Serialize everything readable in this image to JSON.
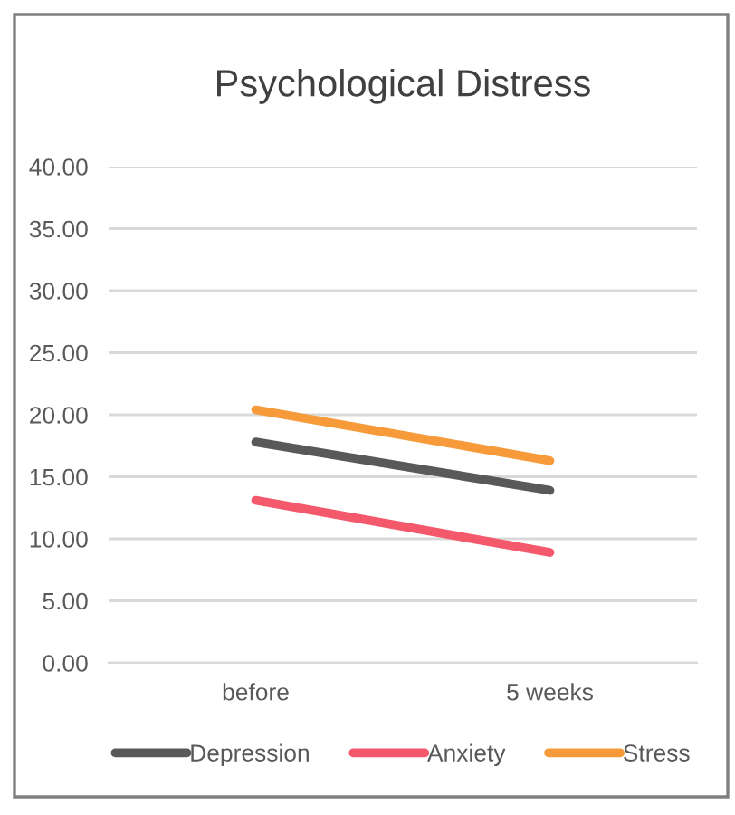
{
  "chart_data": {
    "type": "line",
    "title": "Psychological Distress",
    "categories": [
      "before",
      "5 weeks"
    ],
    "series": [
      {
        "name": "Depression",
        "color": "#595959",
        "values": [
          17.8,
          13.9
        ]
      },
      {
        "name": "Anxiety",
        "color": "#f4596b",
        "values": [
          13.1,
          8.9
        ]
      },
      {
        "name": "Stress",
        "color": "#f79a3a",
        "values": [
          20.4,
          16.3
        ]
      }
    ],
    "ylim": [
      0,
      40
    ],
    "yticks": [
      {
        "value": 0,
        "label": "0.00"
      },
      {
        "value": 5,
        "label": "5.00"
      },
      {
        "value": 10,
        "label": "10.00"
      },
      {
        "value": 15,
        "label": "15.00"
      },
      {
        "value": 20,
        "label": "20.00"
      },
      {
        "value": 25,
        "label": "25.00"
      },
      {
        "value": 30,
        "label": "30.00"
      },
      {
        "value": 35,
        "label": "35.00"
      },
      {
        "value": 40,
        "label": "40.00"
      }
    ],
    "grid": "y",
    "legend": "bottom",
    "marker": "none",
    "line_style": "solid"
  }
}
